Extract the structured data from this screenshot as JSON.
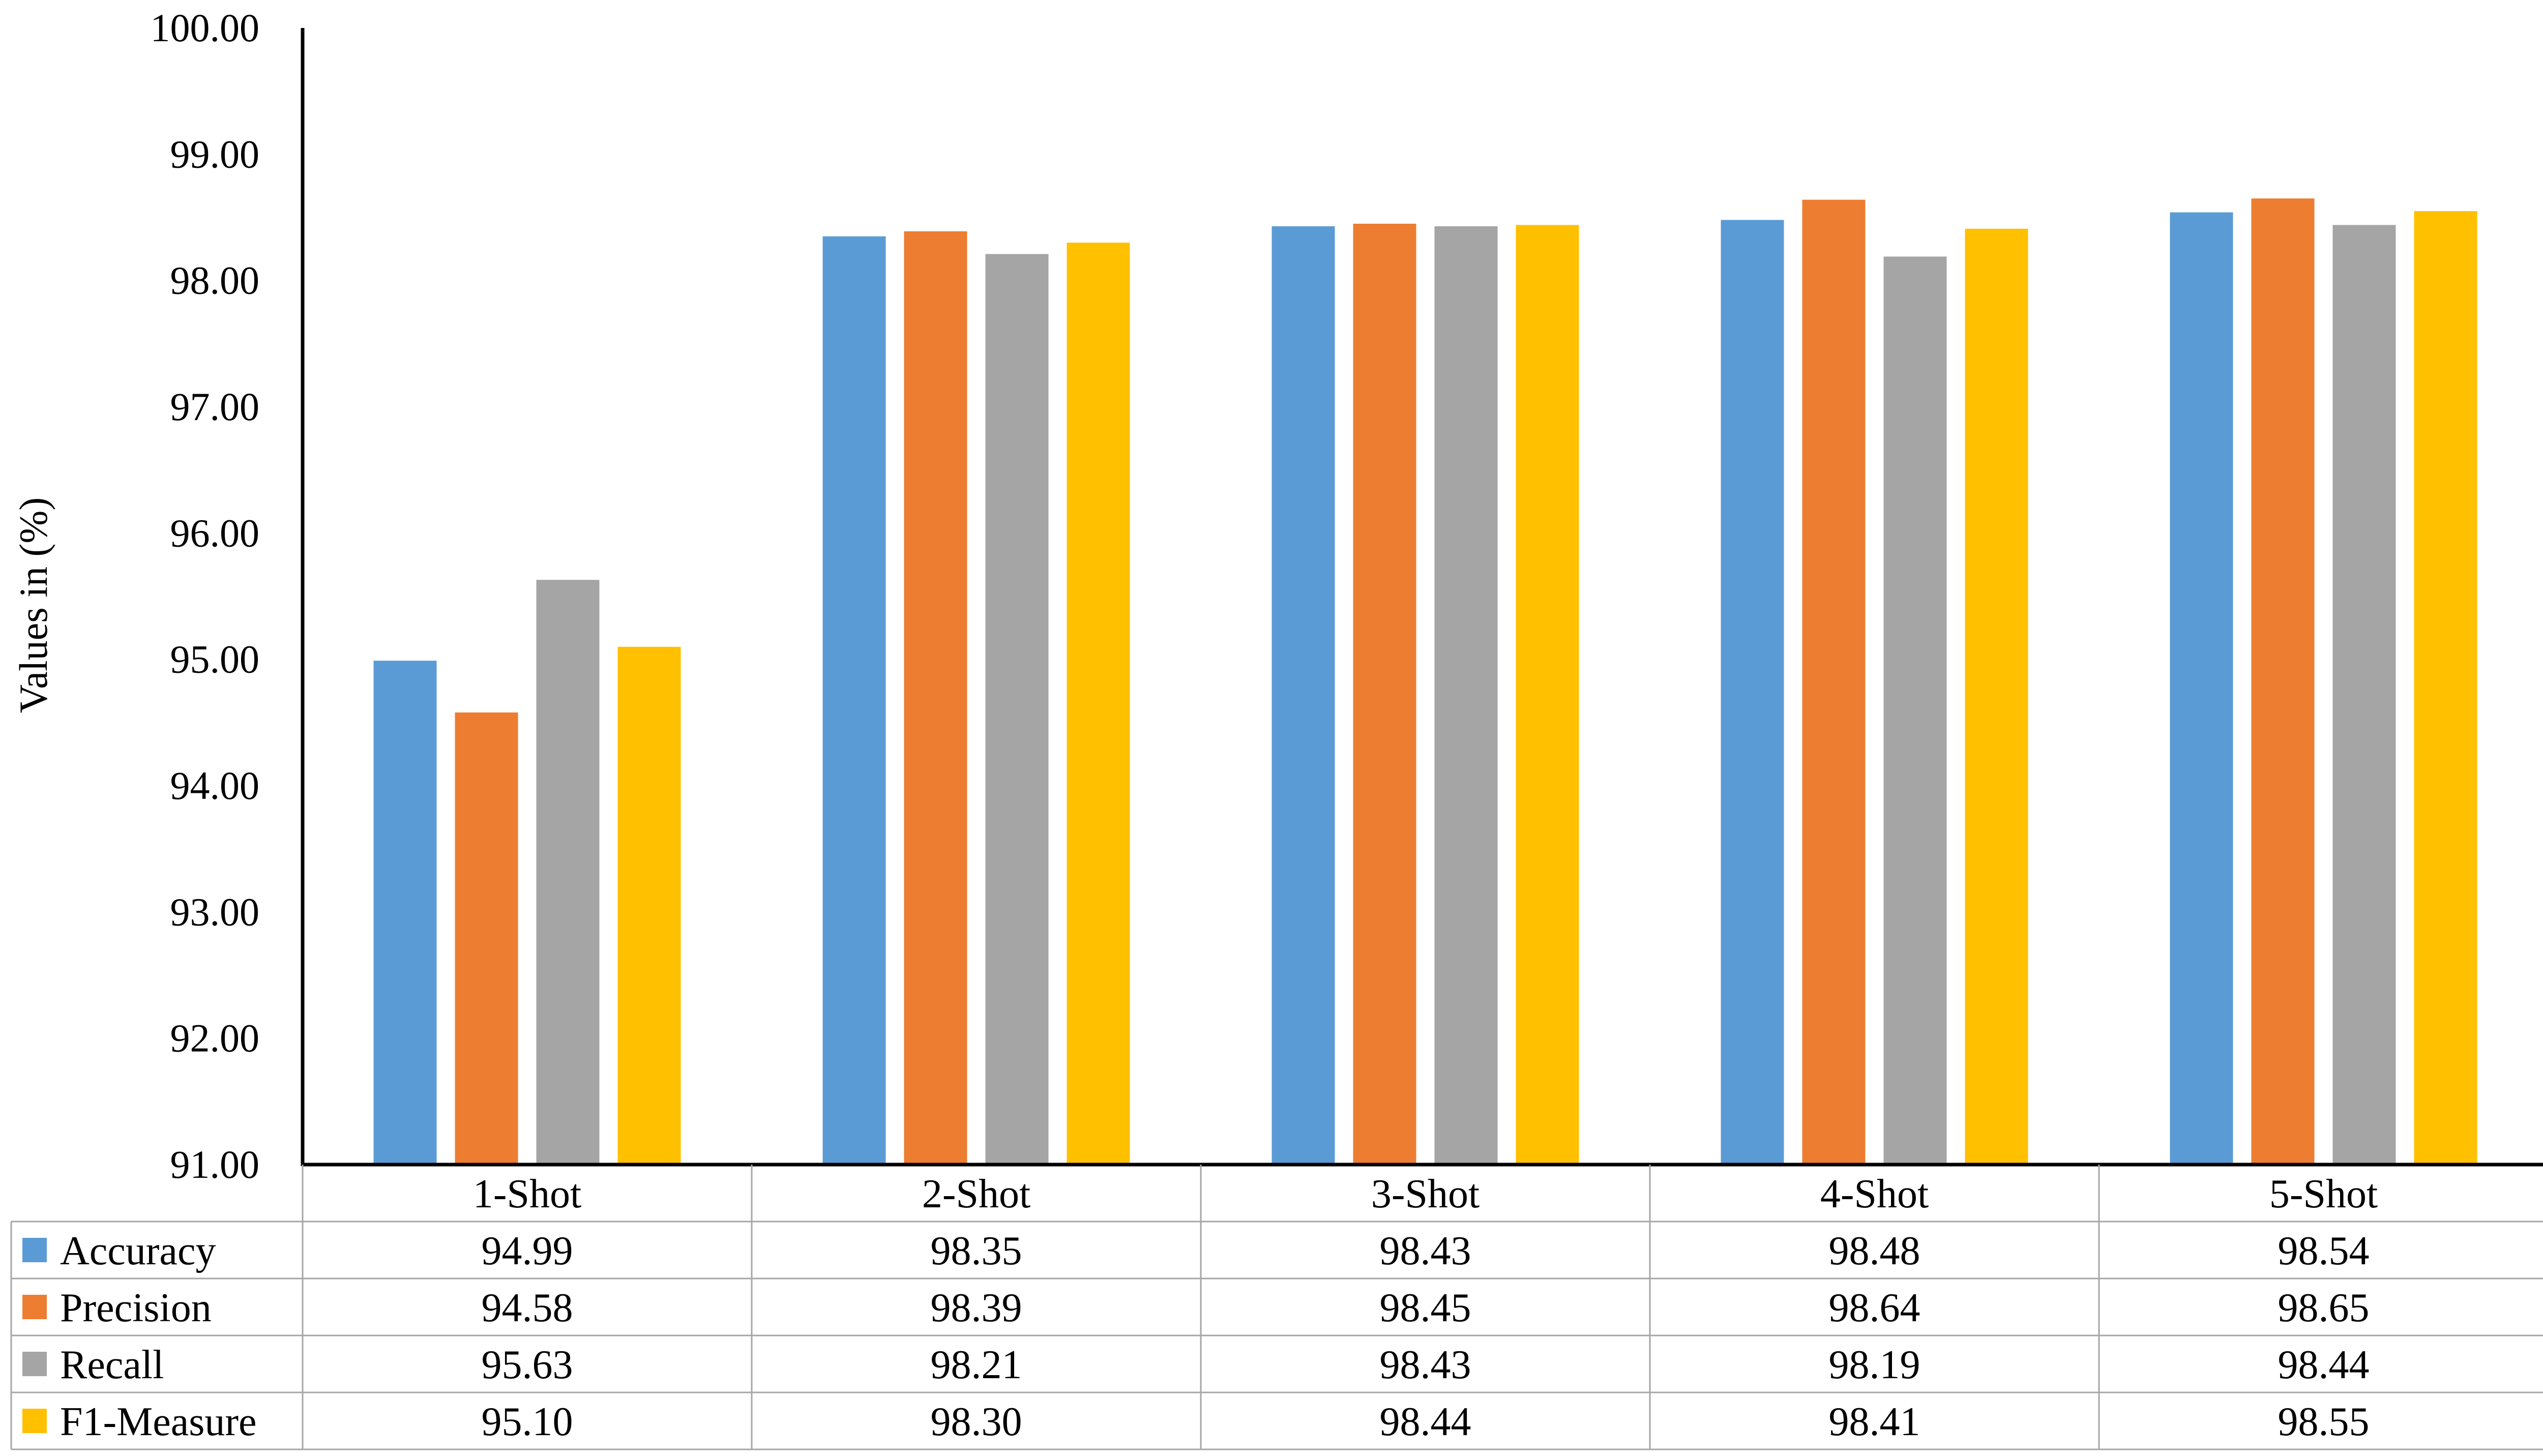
{
  "chart_data": {
    "type": "bar",
    "title": "",
    "xlabel": "",
    "ylabel": "Values in (%)",
    "ylim": [
      91,
      100
    ],
    "yticks": [
      "91.00",
      "92.00",
      "93.00",
      "94.00",
      "95.00",
      "96.00",
      "97.00",
      "98.00",
      "99.00",
      "100.00"
    ],
    "grid": false,
    "legend": "data-table-left",
    "categories": [
      "1-Shot",
      "2-Shot",
      "3-Shot",
      "4-Shot",
      "5-Shot"
    ],
    "series": [
      {
        "name": "Accuracy",
        "color": "#5B9BD5",
        "values": [
          94.99,
          98.35,
          98.43,
          98.48,
          98.54
        ],
        "display": [
          "94.99",
          "98.35",
          "98.43",
          "98.48",
          "98.54"
        ]
      },
      {
        "name": "Precision",
        "color": "#ED7D31",
        "values": [
          94.58,
          98.39,
          98.45,
          98.64,
          98.65
        ],
        "display": [
          "94.58",
          "98.39",
          "98.45",
          "98.64",
          "98.65"
        ]
      },
      {
        "name": "Recall",
        "color": "#A5A5A5",
        "values": [
          95.63,
          98.21,
          98.43,
          98.19,
          98.44
        ],
        "display": [
          "95.63",
          "98.21",
          "98.43",
          "98.19",
          "98.44"
        ]
      },
      {
        "name": "F1-Measure",
        "color": "#FFC000",
        "values": [
          95.1,
          98.3,
          98.44,
          98.41,
          98.55
        ],
        "display": [
          "95.10",
          "98.30",
          "98.44",
          "98.41",
          "98.55"
        ]
      }
    ]
  }
}
